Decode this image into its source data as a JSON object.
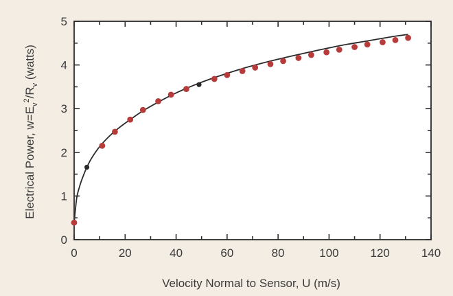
{
  "chart_data": {
    "type": "scatter",
    "title": "",
    "xlabel": "Velocity Normal to Sensor, U (m/s)",
    "ylabel": "Electrical Power, w=E_v^2/R_v (watts)",
    "ylabel_parts": {
      "prefix": "Electrical Power, w=E",
      "sub1": "v",
      "sup": "2",
      "mid": "/R",
      "sub2": "v",
      "suffix": " (watts)"
    },
    "xlim": [
      0,
      140
    ],
    "ylim": [
      0,
      5
    ],
    "x_ticks": [
      0,
      20,
      40,
      60,
      80,
      100,
      120,
      140
    ],
    "x_tick_labels": [
      "0",
      "20",
      "40",
      "60",
      "80",
      "100",
      "120",
      "140"
    ],
    "y_ticks": [
      0,
      1,
      2,
      3,
      4,
      5
    ],
    "y_tick_labels": [
      "0",
      "1",
      "2",
      "3",
      "4",
      "5"
    ],
    "grid": false,
    "series": [
      {
        "kind": "points",
        "marker_color": "#b83b3b",
        "x": [
          0,
          5,
          11,
          16,
          22,
          27,
          33,
          38,
          44,
          49,
          55,
          60,
          66,
          71,
          77,
          82,
          88,
          93,
          99,
          104,
          110,
          115,
          121,
          126,
          131
        ],
        "y": [
          0.39,
          1.66,
          2.15,
          2.47,
          2.75,
          2.97,
          3.17,
          3.32,
          3.45,
          3.55,
          3.68,
          3.77,
          3.86,
          3.94,
          4.02,
          4.09,
          4.16,
          4.23,
          4.29,
          4.35,
          4.41,
          4.47,
          4.52,
          4.57,
          4.62
        ],
        "dark_points": [
          1,
          9
        ]
      },
      {
        "kind": "fit-curve",
        "line_color": "#2a2a2a",
        "x": [
          0,
          1,
          2,
          3,
          5,
          7,
          10,
          14,
          18,
          22,
          27,
          33,
          40,
          48,
          56,
          65,
          75,
          85,
          95,
          105,
          115,
          125,
          131
        ],
        "y": [
          0.39,
          0.95,
          1.19,
          1.37,
          1.66,
          1.88,
          2.13,
          2.38,
          2.58,
          2.75,
          2.95,
          3.15,
          3.36,
          3.56,
          3.73,
          3.9,
          4.06,
          4.2,
          4.33,
          4.45,
          4.55,
          4.65,
          4.7
        ]
      }
    ]
  }
}
